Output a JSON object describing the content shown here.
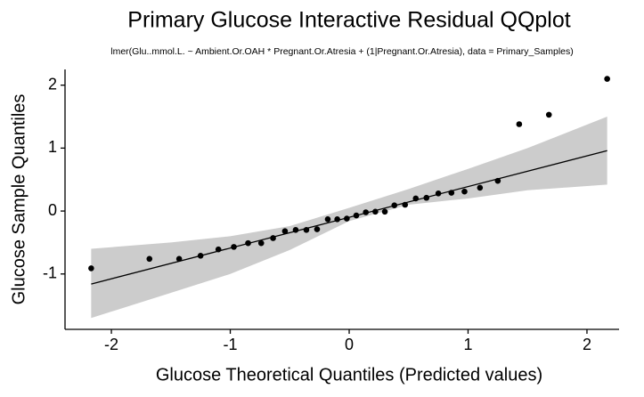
{
  "chart_data": {
    "type": "scatter",
    "title": "Primary Glucose Interactive Residual QQplot",
    "subtitle": "lmer(Glu..mmol.L. ~ Ambient.Or.OAH * Pregnant.Or.Atresia + (1|Pregnant.Or.Atresia), data = Primary_Samples)",
    "xlabel": "Glucose Theoretical Quantiles (Predicted values)",
    "ylabel": "Glucose Sample Quantiles",
    "x": [
      -2.17,
      -1.68,
      -1.43,
      -1.25,
      -1.1,
      -0.97,
      -0.85,
      -0.74,
      -0.64,
      -0.54,
      -0.45,
      -0.36,
      -0.27,
      -0.18,
      -0.1,
      -0.02,
      0.06,
      0.14,
      0.22,
      0.3,
      0.38,
      0.47,
      0.56,
      0.65,
      0.75,
      0.86,
      0.97,
      1.1,
      1.25,
      1.43,
      1.68,
      2.17
    ],
    "y": [
      -0.91,
      -0.76,
      -0.76,
      -0.71,
      -0.61,
      -0.57,
      -0.51,
      -0.51,
      -0.43,
      -0.32,
      -0.3,
      -0.3,
      -0.29,
      -0.13,
      -0.13,
      -0.12,
      -0.07,
      -0.02,
      -0.01,
      -0.01,
      0.09,
      0.1,
      0.2,
      0.21,
      0.28,
      0.29,
      0.31,
      0.37,
      0.48,
      1.38,
      1.53,
      2.1
    ],
    "point_color": "#000000",
    "fit_line": {
      "x": [
        -2.17,
        2.17
      ],
      "y": [
        -1.16,
        0.96
      ],
      "color": "#000000"
    },
    "band": {
      "x": [
        -2.17,
        -1.5,
        -1,
        -0.5,
        0,
        0.5,
        1,
        1.5,
        2.17
      ],
      "lower": [
        -1.7,
        -1.3,
        -1.0,
        -0.62,
        -0.16,
        0.1,
        0.2,
        0.33,
        0.42
      ],
      "upper": [
        -0.6,
        -0.5,
        -0.4,
        -0.24,
        0.05,
        0.35,
        0.67,
        1.0,
        1.5
      ],
      "color": "#cccccc"
    },
    "xlim": [
      -2.39,
      2.27
    ],
    "ylim": [
      -1.88,
      2.25
    ],
    "xticks": [
      -2,
      -1,
      0,
      1,
      2
    ],
    "yticks": [
      -1,
      0,
      1,
      2
    ],
    "grid": false
  }
}
